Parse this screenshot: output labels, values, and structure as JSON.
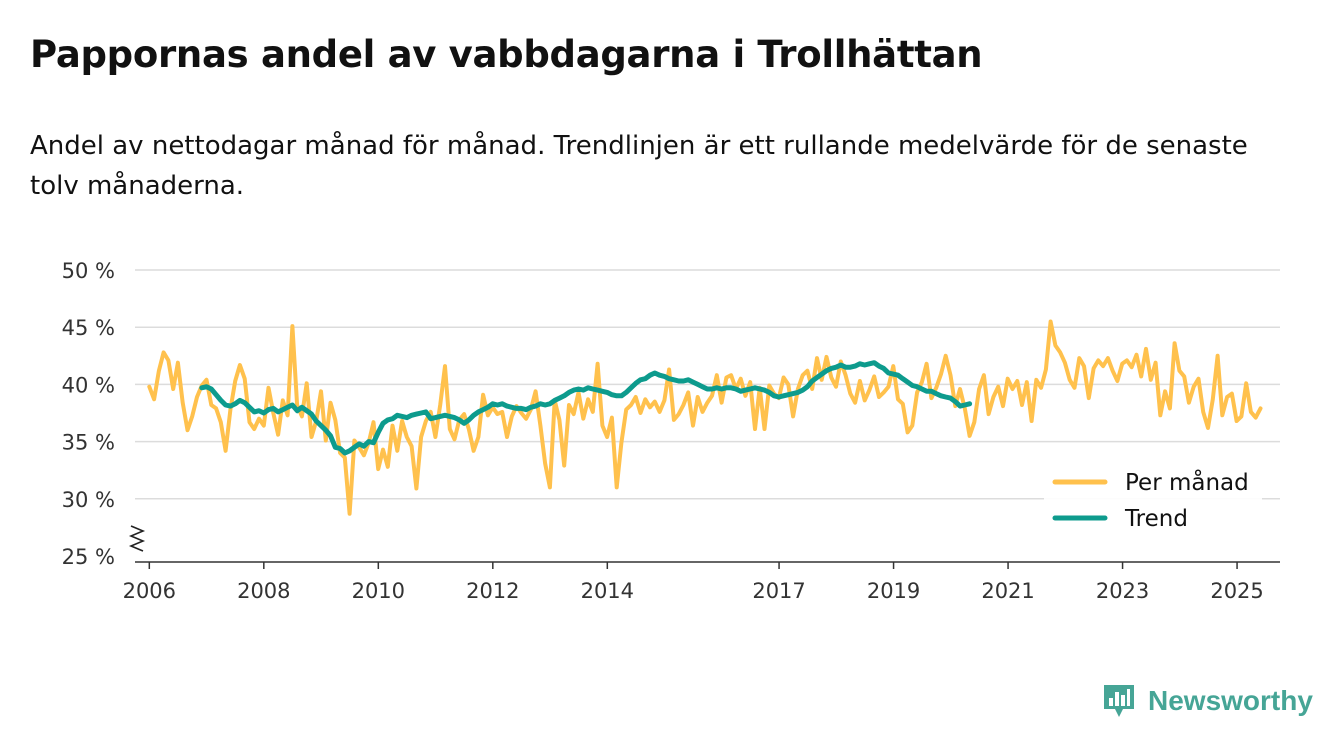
{
  "title": "Pappornas andel av vabbdagarna i Trollhättan",
  "subtitle": "Andel av nettodagar månad för månad. Trendlinjen är ett rullande medelvärde för de senaste tolv månaderna.",
  "brand": {
    "name": "Newsworthy",
    "color": "#46a596",
    "icon": "newsworthy-logo-icon"
  },
  "chart_data": {
    "type": "line",
    "title": "Pappornas andel av vabbdagarna i Trollhättan",
    "xlabel": "",
    "ylabel": "",
    "ylim": [
      25,
      50
    ],
    "xlim": [
      2005.75,
      2025.75
    ],
    "y_ticks": [
      25,
      30,
      35,
      40,
      45,
      50
    ],
    "y_tick_labels": [
      "25 %",
      "30 %",
      "35 %",
      "40 %",
      "45 %",
      "50 %"
    ],
    "x_ticks": [
      2006,
      2008,
      2010,
      2012,
      2014,
      2017,
      2019,
      2021,
      2023,
      2025
    ],
    "x_tick_labels": [
      "2006",
      "2008",
      "2010",
      "2012",
      "2014",
      "2017",
      "2019",
      "2021",
      "2023",
      "2025"
    ],
    "grid": true,
    "axis_break": true,
    "legend_position": "bottom-right",
    "series": [
      {
        "name": "Per månad",
        "color": "#ffc14d",
        "start": 2006.0,
        "step": 0.0833,
        "values": [
          39.8,
          38.7,
          41.2,
          42.8,
          42.1,
          39.6,
          41.9,
          38.4,
          36.0,
          37.2,
          38.9,
          39.9,
          40.4,
          38.2,
          37.9,
          36.7,
          34.2,
          37.8,
          40.3,
          41.7,
          40.5,
          36.7,
          36.1,
          37.0,
          36.4,
          39.7,
          37.5,
          35.6,
          38.6,
          37.3,
          45.1,
          38.2,
          37.2,
          40.1,
          35.4,
          36.8,
          39.4,
          35.1,
          38.4,
          36.9,
          34.0,
          33.6,
          28.7,
          35.1,
          34.5,
          33.8,
          34.9,
          36.7,
          32.6,
          34.3,
          32.8,
          36.4,
          34.2,
          36.8,
          35.4,
          34.6,
          30.9,
          35.4,
          36.8,
          37.6,
          35.4,
          38.2,
          41.6,
          36.1,
          35.2,
          36.9,
          37.4,
          36.1,
          34.2,
          35.4,
          39.1,
          37.3,
          38.0,
          37.4,
          37.6,
          35.4,
          37.2,
          38.1,
          37.5,
          37.0,
          37.8,
          39.4,
          36.4,
          33.1,
          31.0,
          38.6,
          36.9,
          32.9,
          38.2,
          37.4,
          39.3,
          37.0,
          38.7,
          37.6,
          41.8,
          36.4,
          35.4,
          37.1,
          31.0,
          34.9,
          37.8,
          38.2,
          38.9,
          37.5,
          38.7,
          38.0,
          38.5,
          37.6,
          38.6,
          41.3,
          36.9,
          37.4,
          38.2,
          39.3,
          36.4,
          38.9,
          37.6,
          38.4,
          39.0,
          40.8,
          38.4,
          40.6,
          40.8,
          39.6,
          40.5,
          39.0,
          40.2,
          36.1,
          39.7,
          36.1,
          39.9,
          39.2,
          38.8,
          40.6,
          40.0,
          37.2,
          39.6,
          40.8,
          41.2,
          39.6,
          42.3,
          40.4,
          42.4,
          40.6,
          39.8,
          42.0,
          40.8,
          39.2,
          38.4,
          40.3,
          38.6,
          39.5,
          40.7,
          38.9,
          39.3,
          39.8,
          41.6,
          38.7,
          38.3,
          35.8,
          36.4,
          39.3,
          40.2,
          41.8,
          38.8,
          39.7,
          40.9,
          42.5,
          40.8,
          38.1,
          39.6,
          37.9,
          35.5,
          36.7,
          39.6,
          40.8,
          37.4,
          38.9,
          39.8,
          38.1,
          40.5,
          39.6,
          40.3,
          38.2,
          40.2,
          36.8,
          40.4,
          39.7,
          41.3,
          45.5,
          43.4,
          42.8,
          41.9,
          40.4,
          39.7,
          42.3,
          41.6,
          38.8,
          41.4,
          42.1,
          41.6,
          42.3,
          41.2,
          40.3,
          41.8,
          42.1,
          41.5,
          42.6,
          40.7,
          43.1,
          40.4,
          41.9,
          37.3,
          39.4,
          37.9,
          43.6,
          41.2,
          40.7,
          38.4,
          39.8,
          40.5,
          37.6,
          36.2,
          38.7,
          42.5,
          37.3,
          38.9,
          39.2,
          36.8,
          37.2,
          40.1,
          37.6,
          37.1,
          37.9
        ]
      },
      {
        "name": "Trend",
        "color": "#0d9b8d",
        "start": 2006.9167,
        "step": 0.0833,
        "values": [
          39.7,
          39.8,
          39.6,
          39.1,
          38.6,
          38.2,
          38.1,
          38.3,
          38.6,
          38.4,
          38.0,
          37.6,
          37.7,
          37.5,
          37.8,
          37.9,
          37.6,
          37.8,
          38.0,
          38.2,
          37.7,
          38.0,
          37.7,
          37.4,
          36.8,
          36.4,
          36.0,
          35.5,
          34.5,
          34.4,
          34.0,
          34.2,
          34.5,
          34.8,
          34.6,
          35.0,
          34.9,
          35.8,
          36.6,
          36.9,
          37.0,
          37.3,
          37.2,
          37.1,
          37.3,
          37.4,
          37.5,
          37.6,
          37.0,
          37.1,
          37.2,
          37.3,
          37.2,
          37.1,
          36.9,
          36.6,
          36.9,
          37.3,
          37.6,
          37.8,
          38.0,
          38.3,
          38.2,
          38.3,
          38.1,
          38.0,
          37.9,
          37.9,
          37.8,
          38.0,
          38.1,
          38.3,
          38.2,
          38.3,
          38.6,
          38.8,
          39.0,
          39.3,
          39.5,
          39.6,
          39.5,
          39.7,
          39.6,
          39.5,
          39.4,
          39.3,
          39.1,
          39.0,
          39.0,
          39.3,
          39.7,
          40.1,
          40.4,
          40.5,
          40.8,
          41.0,
          40.8,
          40.7,
          40.5,
          40.4,
          40.3,
          40.3,
          40.4,
          40.2,
          40.0,
          39.8,
          39.6,
          39.6,
          39.7,
          39.6,
          39.7,
          39.7,
          39.6,
          39.4,
          39.5,
          39.6,
          39.7,
          39.6,
          39.5,
          39.3,
          39.0,
          38.9,
          39.0,
          39.1,
          39.2,
          39.3,
          39.5,
          39.8,
          40.3,
          40.6,
          40.9,
          41.2,
          41.4,
          41.5,
          41.7,
          41.5,
          41.5,
          41.6,
          41.8,
          41.7,
          41.8,
          41.9,
          41.6,
          41.4,
          41.0,
          40.9,
          40.8,
          40.5,
          40.2,
          39.9,
          39.8,
          39.6,
          39.4,
          39.4,
          39.2,
          39.0,
          38.9,
          38.8,
          38.5,
          38.1,
          38.2,
          38.3
        ]
      }
    ]
  }
}
